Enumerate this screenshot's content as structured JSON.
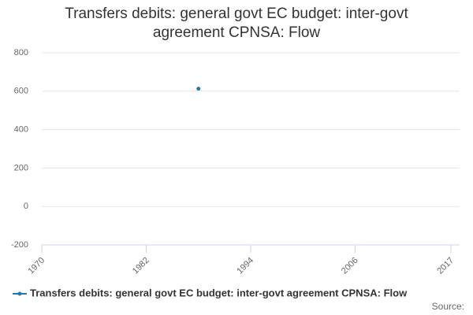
{
  "chart_data": {
    "type": "line",
    "title": "Transfers debits: general govt EC budget: inter-govt agreement CPNSA: Flow",
    "x": [
      1988
    ],
    "series": [
      {
        "name": "Transfers debits: general govt EC budget: inter-govt agreement CPNSA: Flow",
        "color": "#1f77b4",
        "values": [
          613
        ]
      }
    ],
    "xlim": [
      1970,
      2018
    ],
    "xticks": [
      1970,
      1982,
      1994,
      2006,
      2017
    ],
    "ylim": [
      -200,
      800
    ],
    "yticks": [
      -200,
      0,
      200,
      400,
      600,
      800
    ],
    "grid": true,
    "source": "Source:"
  }
}
